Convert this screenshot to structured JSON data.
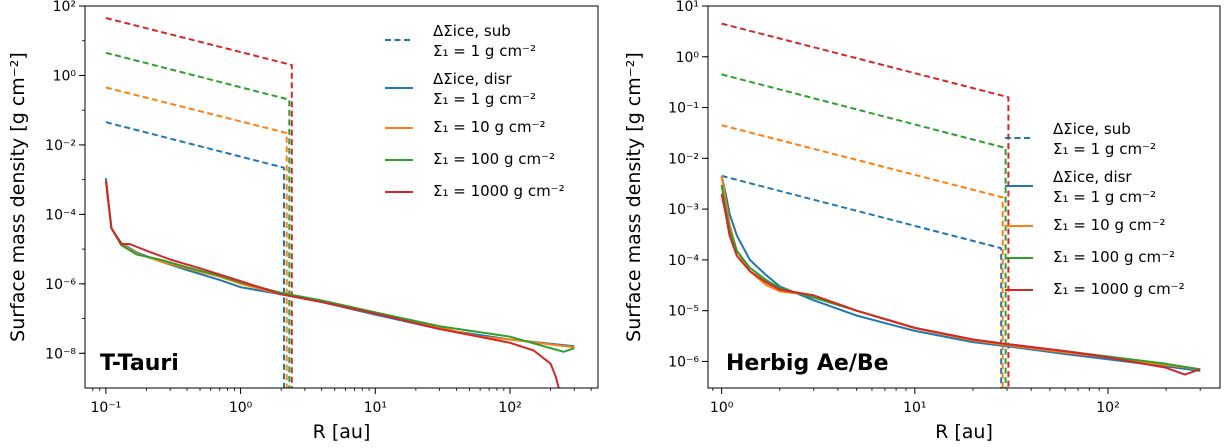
{
  "chart_data": [
    {
      "type": "line",
      "panel_label": "T-Tauri",
      "xlabel": "R [au]",
      "ylabel": "Surface mass density [g cm⁻²]",
      "xscale": "log",
      "yscale": "log",
      "xlim": [
        0.07,
        450
      ],
      "ylim": [
        1e-09,
        100
      ],
      "x_ticks": [
        {
          "value": 0.1,
          "label": "10⁻¹"
        },
        {
          "value": 1,
          "label": "10⁰"
        },
        {
          "value": 10,
          "label": "10¹"
        },
        {
          "value": 100,
          "label": "10²"
        }
      ],
      "y_ticks": [
        {
          "value": 1e-08,
          "label": "10⁻⁸"
        },
        {
          "value": 1e-06,
          "label": "10⁻⁶"
        },
        {
          "value": 0.0001,
          "label": "10⁻⁴"
        },
        {
          "value": 0.01,
          "label": "10⁻²"
        },
        {
          "value": 1,
          "label": "10⁰"
        },
        {
          "value": 100,
          "label": "10²"
        }
      ],
      "legend_placement": "top-right",
      "legend": [
        {
          "style": "dashed",
          "color": "#1f77b4",
          "line1": "ΔΣice, sub",
          "line2": "Σ₁ = 1 g cm⁻²"
        },
        {
          "style": "solid",
          "color": "#1f77b4",
          "line1": "ΔΣice, disr",
          "line2": "Σ₁ = 1 g cm⁻²"
        },
        {
          "style": "solid",
          "color": "#ff7f0e",
          "line1": "Σ₁ = 10 g cm⁻²"
        },
        {
          "style": "solid",
          "color": "#2ca02c",
          "line1": "Σ₁ = 100 g cm⁻²"
        },
        {
          "style": "solid",
          "color": "#d62728",
          "line1": "Σ₁ = 1000 g cm⁻²"
        }
      ],
      "series": [
        {
          "color": "#1f77b4",
          "style": "dashed",
          "x": [
            0.1,
            2.1,
            2.1
          ],
          "y": [
            0.045,
            0.0022,
            1e-09
          ]
        },
        {
          "color": "#ff7f0e",
          "style": "dashed",
          "x": [
            0.1,
            2.2,
            2.2
          ],
          "y": [
            0.45,
            0.022,
            1e-09
          ]
        },
        {
          "color": "#2ca02c",
          "style": "dashed",
          "x": [
            0.1,
            2.3,
            2.3
          ],
          "y": [
            4.5,
            0.2,
            1e-09
          ]
        },
        {
          "color": "#d62728",
          "style": "dashed",
          "x": [
            0.1,
            2.4,
            2.4
          ],
          "y": [
            45,
            2,
            1e-09
          ]
        },
        {
          "color": "#1f77b4",
          "style": "solid",
          "x": [
            0.1,
            0.11,
            0.13,
            0.17,
            0.25,
            0.4,
            0.7,
            1.0,
            2.0,
            4.0,
            10,
            30,
            100,
            300
          ],
          "y": [
            0.0011,
            4e-05,
            1.5e-05,
            8e-06,
            4.5e-06,
            2.5e-06,
            1.3e-06,
            8e-07,
            5e-07,
            3e-07,
            1.3e-07,
            5e-08,
            2.5e-08,
            1.6e-08
          ]
        },
        {
          "color": "#ff7f0e",
          "style": "solid",
          "x": [
            0.1,
            0.11,
            0.13,
            0.17,
            0.25,
            0.4,
            0.7,
            1.0,
            2.0,
            4.0,
            10,
            30,
            60,
            100,
            300
          ],
          "y": [
            0.0009,
            4e-05,
            1.4e-05,
            7.5e-06,
            4.5e-06,
            2.8e-06,
            1.6e-06,
            1e-06,
            5e-07,
            3.2e-07,
            1.4e-07,
            5.5e-08,
            3e-08,
            2.5e-08,
            1.5e-08
          ]
        },
        {
          "color": "#2ca02c",
          "style": "solid",
          "x": [
            0.1,
            0.11,
            0.13,
            0.17,
            0.25,
            0.4,
            0.7,
            1.0,
            2.0,
            4.0,
            10,
            30,
            100,
            250,
            300
          ],
          "y": [
            0.001,
            4e-05,
            1.3e-05,
            7e-06,
            5e-06,
            3e-06,
            1.7e-06,
            1.1e-06,
            5.5e-07,
            3.3e-07,
            1.5e-07,
            6e-08,
            3e-08,
            1.1e-08,
            1.4e-08
          ]
        },
        {
          "color": "#d62728",
          "style": "solid",
          "x": [
            0.1,
            0.11,
            0.13,
            0.15,
            0.2,
            0.3,
            0.5,
            1.0,
            2.0,
            4.0,
            10,
            30,
            100,
            150,
            200,
            220,
            230
          ],
          "y": [
            0.0009,
            4e-05,
            1.4e-05,
            1.4e-05,
            9e-06,
            5e-06,
            2.8e-06,
            1.2e-06,
            5e-07,
            3e-07,
            1.4e-07,
            5e-08,
            2e-08,
            1.2e-08,
            5e-09,
            2e-09,
            1e-09
          ]
        }
      ]
    },
    {
      "type": "line",
      "panel_label": "Herbig Ae/Be",
      "xlabel": "R [au]",
      "ylabel": "Surface mass density [g cm⁻²]",
      "xscale": "log",
      "yscale": "log",
      "xlim": [
        0.85,
        380
      ],
      "ylim": [
        3e-07,
        10
      ],
      "x_ticks": [
        {
          "value": 1,
          "label": "10⁰"
        },
        {
          "value": 10,
          "label": "10¹"
        },
        {
          "value": 100,
          "label": "10²"
        }
      ],
      "y_ticks": [
        {
          "value": 1e-06,
          "label": "10⁻⁶"
        },
        {
          "value": 1e-05,
          "label": "10⁻⁵"
        },
        {
          "value": 0.0001,
          "label": "10⁻⁴"
        },
        {
          "value": 0.001,
          "label": "10⁻³"
        },
        {
          "value": 0.01,
          "label": "10⁻²"
        },
        {
          "value": 0.1,
          "label": "10⁻¹"
        },
        {
          "value": 1,
          "label": "10⁰"
        },
        {
          "value": 10,
          "label": "10¹"
        }
      ],
      "legend_placement": "center-right",
      "legend": [
        {
          "style": "dashed",
          "color": "#1f77b4",
          "line1": "ΔΣice, sub",
          "line2": "Σ₁ = 1 g cm⁻²"
        },
        {
          "style": "solid",
          "color": "#1f77b4",
          "line1": "ΔΣice, disr",
          "line2": "Σ₁ = 1 g cm⁻²"
        },
        {
          "style": "solid",
          "color": "#ff7f0e",
          "line1": "Σ₁ = 10 g cm⁻²"
        },
        {
          "style": "solid",
          "color": "#2ca02c",
          "line1": "Σ₁ = 100 g cm⁻²"
        },
        {
          "style": "solid",
          "color": "#d62728",
          "line1": "Σ₁ = 1000 g cm⁻²"
        }
      ],
      "series": [
        {
          "color": "#1f77b4",
          "style": "dashed",
          "x": [
            1,
            28,
            28
          ],
          "y": [
            0.0045,
            0.00017,
            3e-07
          ]
        },
        {
          "color": "#ff7f0e",
          "style": "dashed",
          "x": [
            1,
            28.5,
            28.5
          ],
          "y": [
            0.045,
            0.0017,
            3e-07
          ]
        },
        {
          "color": "#2ca02c",
          "style": "dashed",
          "x": [
            1,
            29.5,
            29.5
          ],
          "y": [
            0.45,
            0.016,
            3e-07
          ]
        },
        {
          "color": "#d62728",
          "style": "dashed",
          "x": [
            1,
            30.5,
            30.5
          ],
          "y": [
            4.5,
            0.16,
            3e-07
          ]
        },
        {
          "color": "#1f77b4",
          "style": "solid",
          "x": [
            1,
            1.05,
            1.1,
            1.2,
            1.4,
            1.7,
            2,
            3,
            5,
            10,
            20,
            30,
            60,
            100,
            200,
            300
          ],
          "y": [
            0.0045,
            0.002,
            0.0008,
            0.0003,
            0.0001,
            5e-05,
            3e-05,
            1.6e-05,
            8e-06,
            4e-06,
            2.4e-06,
            2e-06,
            1.4e-06,
            1.1e-06,
            8e-07,
            6.5e-07
          ]
        },
        {
          "color": "#ff7f0e",
          "style": "solid",
          "x": [
            1,
            1.05,
            1.1,
            1.2,
            1.4,
            1.7,
            2,
            3,
            5,
            10,
            20,
            30,
            60,
            100,
            200,
            300
          ],
          "y": [
            0.0045,
            0.0015,
            0.0005,
            0.00015,
            6e-05,
            3.2e-05,
            2.4e-05,
            2e-05,
            1e-05,
            4.5e-06,
            2.6e-06,
            2.1e-06,
            1.5e-06,
            1.2e-06,
            8.5e-07,
            7e-07
          ]
        },
        {
          "color": "#2ca02c",
          "style": "solid",
          "x": [
            1,
            1.05,
            1.1,
            1.2,
            1.4,
            1.7,
            2,
            3,
            5,
            10,
            20,
            30,
            60,
            100,
            200,
            300
          ],
          "y": [
            0.003,
            0.001,
            0.0004,
            0.00015,
            7e-05,
            4e-05,
            2.8e-05,
            1.8e-05,
            1e-05,
            4.6e-06,
            2.7e-06,
            2.2e-06,
            1.6e-06,
            1.25e-06,
            9e-07,
            7e-07
          ]
        },
        {
          "color": "#d62728",
          "style": "solid",
          "x": [
            1,
            1.05,
            1.1,
            1.2,
            1.4,
            1.7,
            2,
            3,
            5,
            10,
            20,
            30,
            60,
            100,
            200,
            250,
            300
          ],
          "y": [
            0.002,
            0.0008,
            0.0003,
            0.00012,
            6e-05,
            3.6e-05,
            2.6e-05,
            2e-05,
            1e-05,
            4.6e-06,
            2.7e-06,
            2.2e-06,
            1.6e-06,
            1.2e-06,
            7.5e-07,
            5.5e-07,
            7e-07
          ]
        }
      ]
    }
  ]
}
